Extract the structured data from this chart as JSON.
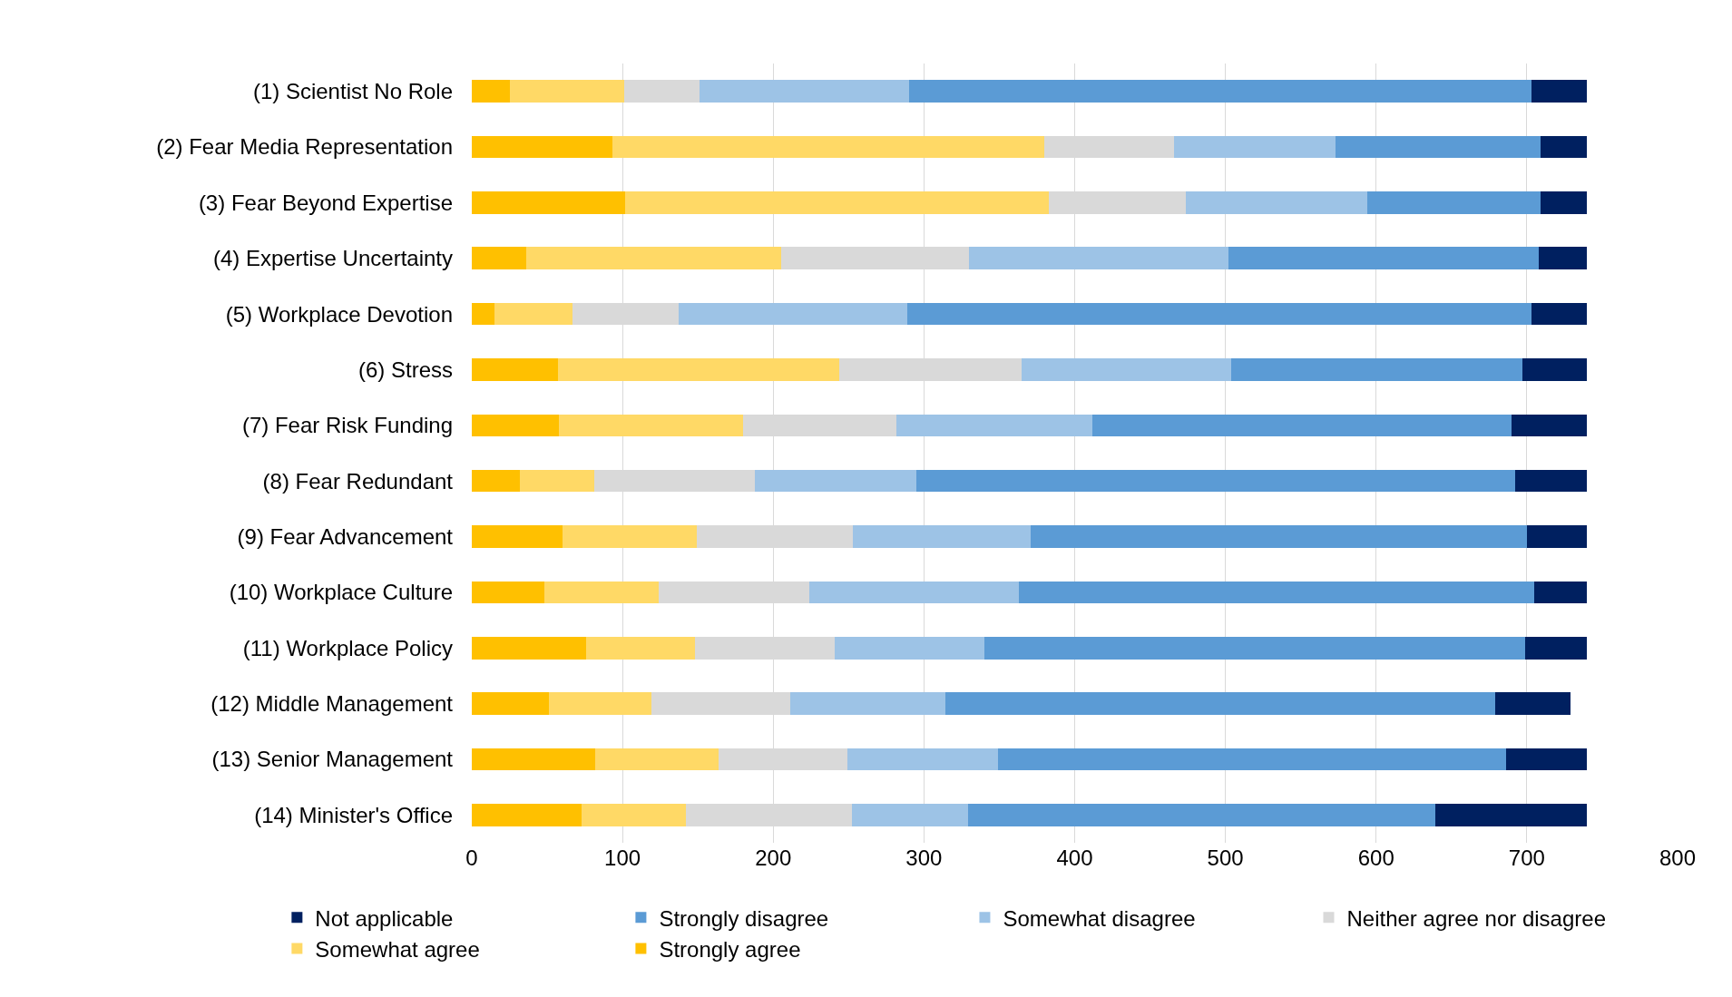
{
  "chart_data": {
    "type": "bar",
    "orientation": "horizontal",
    "stacked": true,
    "categories": [
      "(1) Scientist No Role",
      "(2) Fear Media Representation",
      "(3) Fear Beyond Expertise",
      "(4) Expertise Uncertainty",
      "(5) Workplace Devotion",
      "(6) Stress",
      "(7) Fear Risk Funding",
      "(8) Fear Redundant",
      "(9) Fear Advancement",
      "(10) Workplace Culture",
      "(11) Workplace Policy",
      "(12) Middle Management",
      "(13) Senior Management",
      "(14) Minister's Office"
    ],
    "series": [
      {
        "name": "Strongly agree",
        "color": "#ffc000",
        "values": [
          25,
          93,
          102,
          36,
          15,
          57,
          58,
          32,
          60,
          48,
          76,
          51,
          82,
          73
        ]
      },
      {
        "name": "Somewhat agree",
        "color": "#ffd966",
        "values": [
          76,
          287,
          281,
          169,
          52,
          187,
          122,
          49,
          89,
          76,
          72,
          68,
          82,
          69
        ]
      },
      {
        "name": "Neither agree nor disagree",
        "color": "#d9d9d9",
        "values": [
          50,
          86,
          91,
          125,
          70,
          121,
          102,
          107,
          104,
          100,
          93,
          92,
          85,
          110
        ]
      },
      {
        "name": "Somewhat disagree",
        "color": "#9dc3e6",
        "values": [
          139,
          107,
          120,
          172,
          152,
          139,
          130,
          107,
          118,
          139,
          99,
          103,
          100,
          77
        ]
      },
      {
        "name": "Strongly disagree",
        "color": "#5b9bd5",
        "values": [
          413,
          136,
          115,
          206,
          414,
          193,
          278,
          397,
          329,
          342,
          359,
          365,
          337,
          310
        ]
      },
      {
        "name": "Not applicable",
        "color": "#002060",
        "values": [
          37,
          31,
          31,
          32,
          37,
          43,
          50,
          48,
          40,
          35,
          41,
          50,
          54,
          101
        ]
      }
    ],
    "xlim": [
      0,
      800
    ],
    "xticks": [
      0,
      100,
      200,
      300,
      400,
      500,
      600,
      700,
      800
    ],
    "grid": "x",
    "legend": "bottom"
  }
}
